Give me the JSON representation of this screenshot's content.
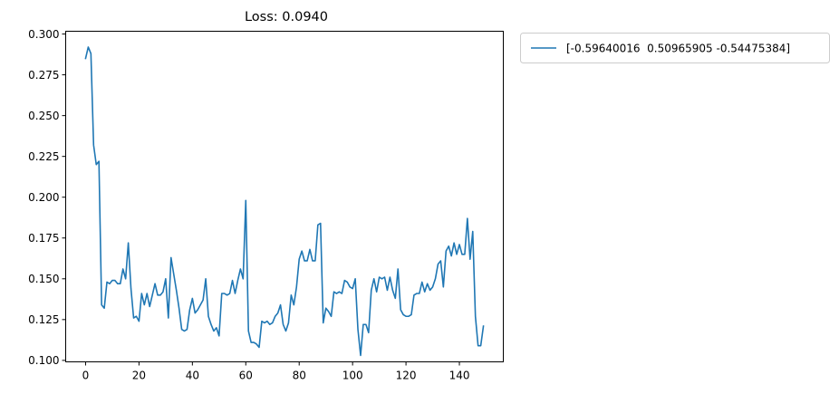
{
  "chart_data": {
    "type": "line",
    "title": "Loss: 0.0940",
    "xlabel": "",
    "ylabel": "",
    "xlim": [
      -7.45,
      156.45
    ],
    "ylim": [
      0.0991,
      0.3017
    ],
    "xticks": [
      0,
      20,
      40,
      60,
      80,
      100,
      120,
      140
    ],
    "yticks": [
      0.1,
      0.125,
      0.15,
      0.175,
      0.2,
      0.225,
      0.25,
      0.275,
      0.3
    ],
    "ytick_labels": [
      "0.100",
      "0.125",
      "0.150",
      "0.175",
      "0.200",
      "0.225",
      "0.250",
      "0.275",
      "0.300"
    ],
    "grid": false,
    "legend_position": "outside top-right",
    "series": [
      {
        "name": "[-0.59640016  0.50965905 -0.54475384]",
        "color": "#1f77b4",
        "x": [
          0,
          1,
          2,
          3,
          4,
          5,
          6,
          7,
          8,
          9,
          10,
          11,
          12,
          13,
          14,
          15,
          16,
          17,
          18,
          19,
          20,
          21,
          22,
          23,
          24,
          25,
          26,
          27,
          28,
          29,
          30,
          31,
          32,
          33,
          34,
          35,
          36,
          37,
          38,
          39,
          40,
          41,
          42,
          43,
          44,
          45,
          46,
          47,
          48,
          49,
          50,
          51,
          52,
          53,
          54,
          55,
          56,
          57,
          58,
          59,
          60,
          61,
          62,
          63,
          64,
          65,
          66,
          67,
          68,
          69,
          70,
          71,
          72,
          73,
          74,
          75,
          76,
          77,
          78,
          79,
          80,
          81,
          82,
          83,
          84,
          85,
          86,
          87,
          88,
          89,
          90,
          91,
          92,
          93,
          94,
          95,
          96,
          97,
          98,
          99,
          100,
          101,
          102,
          103,
          104,
          105,
          106,
          107,
          108,
          109,
          110,
          111,
          112,
          113,
          114,
          115,
          116,
          117,
          118,
          119,
          120,
          121,
          122,
          123,
          124,
          125,
          126,
          127,
          128,
          129,
          130,
          131,
          132,
          133,
          134,
          135,
          136,
          137,
          138,
          139,
          140,
          141,
          142,
          143,
          144,
          145,
          146,
          147,
          148,
          149
        ],
        "y": [
          0.285,
          0.292,
          0.288,
          0.232,
          0.22,
          0.222,
          0.134,
          0.132,
          0.148,
          0.147,
          0.149,
          0.149,
          0.147,
          0.147,
          0.156,
          0.15,
          0.172,
          0.144,
          0.126,
          0.127,
          0.124,
          0.141,
          0.134,
          0.141,
          0.133,
          0.14,
          0.147,
          0.14,
          0.14,
          0.142,
          0.15,
          0.126,
          0.163,
          0.153,
          0.143,
          0.132,
          0.119,
          0.118,
          0.119,
          0.131,
          0.138,
          0.129,
          0.131,
          0.134,
          0.137,
          0.15,
          0.127,
          0.122,
          0.118,
          0.12,
          0.115,
          0.141,
          0.141,
          0.14,
          0.141,
          0.149,
          0.141,
          0.149,
          0.156,
          0.15,
          0.198,
          0.118,
          0.111,
          0.111,
          0.11,
          0.108,
          0.124,
          0.123,
          0.124,
          0.122,
          0.123,
          0.127,
          0.129,
          0.134,
          0.122,
          0.118,
          0.123,
          0.14,
          0.134,
          0.145,
          0.162,
          0.167,
          0.161,
          0.161,
          0.168,
          0.161,
          0.161,
          0.183,
          0.184,
          0.123,
          0.132,
          0.13,
          0.127,
          0.142,
          0.141,
          0.142,
          0.141,
          0.149,
          0.148,
          0.145,
          0.144,
          0.15,
          0.119,
          0.103,
          0.122,
          0.122,
          0.117,
          0.143,
          0.15,
          0.142,
          0.151,
          0.15,
          0.151,
          0.143,
          0.151,
          0.143,
          0.138,
          0.156,
          0.131,
          0.128,
          0.127,
          0.127,
          0.128,
          0.14,
          0.141,
          0.141,
          0.148,
          0.142,
          0.147,
          0.143,
          0.145,
          0.15,
          0.159,
          0.161,
          0.145,
          0.167,
          0.17,
          0.164,
          0.172,
          0.165,
          0.171,
          0.165,
          0.165,
          0.187,
          0.162,
          0.179,
          0.127,
          0.109,
          0.109,
          0.121
        ]
      }
    ]
  }
}
